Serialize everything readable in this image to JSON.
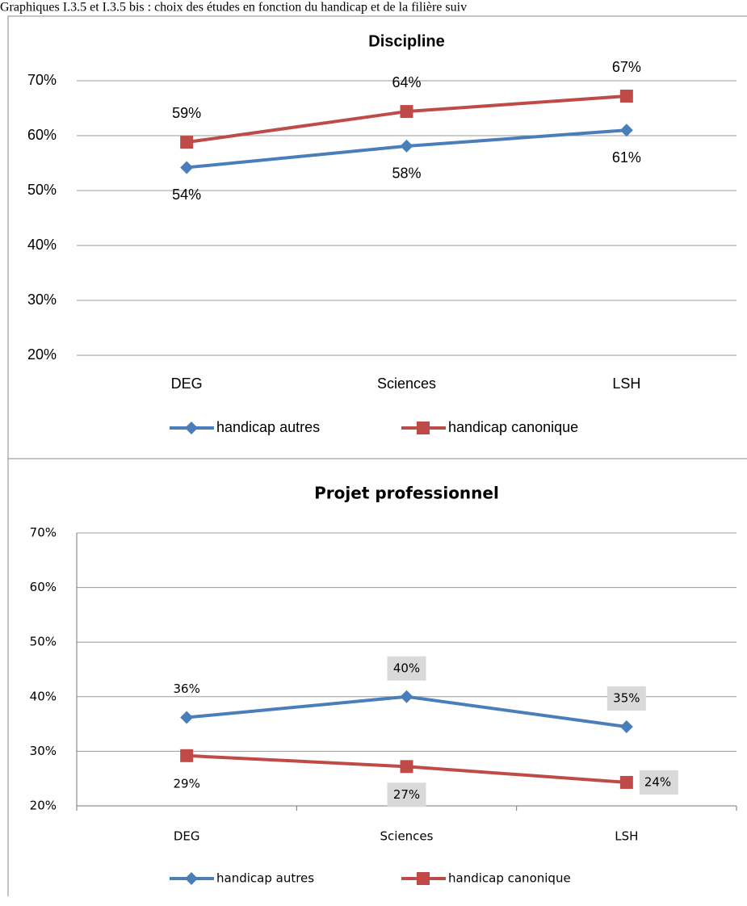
{
  "caption": "Graphiques I.3.5 et I.3.5 bis : choix des études en fonction du handicap et de la filière suiv",
  "chart_data": [
    {
      "type": "line",
      "title": "Discipline",
      "categories": [
        "DEG",
        "Sciences",
        "LSH"
      ],
      "series": [
        {
          "name": "handicap autres",
          "color": "#4a7ebb",
          "values": [
            54.2,
            58.1,
            61
          ],
          "value_labels": [
            "54%",
            "58%",
            "61%"
          ]
        },
        {
          "name": "handicap canonique",
          "color": "#be4b48",
          "values": [
            58.8,
            64.4,
            67.2
          ],
          "value_labels": [
            "59%",
            "64%",
            "67%"
          ]
        }
      ],
      "ylim": [
        20,
        70
      ],
      "yticks": [
        {
          "value": 20,
          "label": "20%"
        },
        {
          "value": 30,
          "label": "30%"
        },
        {
          "value": 40,
          "label": "40%"
        },
        {
          "value": 50,
          "label": "50%"
        },
        {
          "value": 60,
          "label": "60%"
        },
        {
          "value": 70,
          "label": "70%"
        }
      ],
      "grid": true,
      "legend": "bottom"
    },
    {
      "type": "line",
      "title": "Projet professionnel",
      "categories": [
        "DEG",
        "Sciences",
        "LSH"
      ],
      "series": [
        {
          "name": "handicap autres",
          "color": "#4a7ebb",
          "values": [
            36.2,
            40,
            34.5
          ],
          "value_labels": [
            "36%",
            "40%",
            "35%"
          ]
        },
        {
          "name": "handicap canonique",
          "color": "#be4b48",
          "values": [
            29.2,
            27.2,
            24.3
          ],
          "value_labels": [
            "29%",
            "27%",
            "24%"
          ]
        }
      ],
      "ylim": [
        20,
        70
      ],
      "yticks": [
        {
          "value": 20,
          "label": "20%"
        },
        {
          "value": 30,
          "label": "30%"
        },
        {
          "value": 40,
          "label": "40%"
        },
        {
          "value": 50,
          "label": "50%"
        },
        {
          "value": 60,
          "label": "60%"
        },
        {
          "value": 70,
          "label": "70%"
        }
      ],
      "grid": true,
      "legend": "bottom"
    }
  ]
}
